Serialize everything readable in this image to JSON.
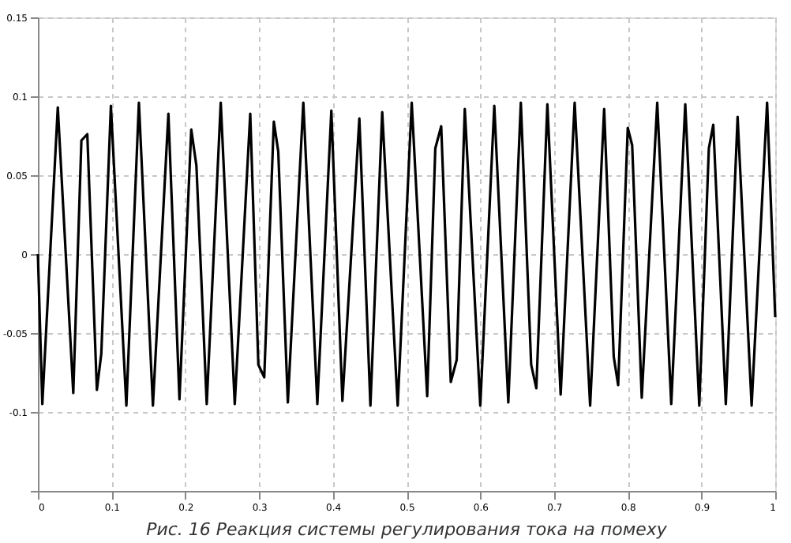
{
  "chart_data": {
    "type": "line",
    "x": [
      0,
      0.006,
      0.027,
      0.048,
      0.059,
      0.067,
      0.08,
      0.086,
      0.099,
      0.12,
      0.137,
      0.156,
      0.177,
      0.192,
      0.208,
      0.215,
      0.229,
      0.248,
      0.267,
      0.288,
      0.299,
      0.307,
      0.32,
      0.326,
      0.339,
      0.36,
      0.379,
      0.398,
      0.413,
      0.436,
      0.451,
      0.467,
      0.488,
      0.507,
      0.528,
      0.539,
      0.547,
      0.56,
      0.568,
      0.579,
      0.6,
      0.619,
      0.638,
      0.655,
      0.669,
      0.676,
      0.691,
      0.709,
      0.728,
      0.749,
      0.768,
      0.781,
      0.787,
      0.8,
      0.806,
      0.819,
      0.84,
      0.859,
      0.878,
      0.897,
      0.91,
      0.916,
      0.933,
      0.949,
      0.968,
      0.989,
      1.0
    ],
    "series": [
      {
        "color": "#000000",
        "values": [
          0,
          -0.095,
          0.093,
          -0.088,
          0.072,
          0.076,
          -0.086,
          -0.063,
          0.094,
          -0.096,
          0.096,
          -0.096,
          0.089,
          -0.092,
          0.079,
          0.056,
          -0.095,
          0.096,
          -0.095,
          0.089,
          -0.07,
          -0.078,
          0.084,
          0.065,
          -0.094,
          0.096,
          -0.095,
          0.091,
          -0.093,
          0.086,
          -0.096,
          0.09,
          -0.096,
          0.096,
          -0.09,
          0.067,
          0.081,
          -0.081,
          -0.067,
          0.092,
          -0.096,
          0.094,
          -0.094,
          0.096,
          -0.07,
          -0.085,
          0.095,
          -0.089,
          0.096,
          -0.096,
          0.092,
          -0.065,
          -0.083,
          0.08,
          0.069,
          -0.091,
          0.096,
          -0.095,
          0.095,
          -0.096,
          0.067,
          0.082,
          -0.095,
          0.087,
          -0.096,
          0.096,
          -0.04
        ]
      }
    ],
    "xlim": [
      0,
      1
    ],
    "ylim": [
      -0.15,
      0.15
    ],
    "xticks": [
      0,
      0.1,
      0.2,
      0.3,
      0.4,
      0.5,
      0.6,
      0.7,
      0.8,
      0.9,
      1
    ],
    "yticks": [
      {
        "value": -0.15,
        "label": null
      },
      -0.1,
      -0.05,
      0,
      0.05,
      0.1,
      0.15
    ],
    "grid": true,
    "line_style": "solid",
    "marker": "none",
    "annotations": [
      "Рис. 16 Реакция системы регулирования тока на помеху"
    ]
  }
}
